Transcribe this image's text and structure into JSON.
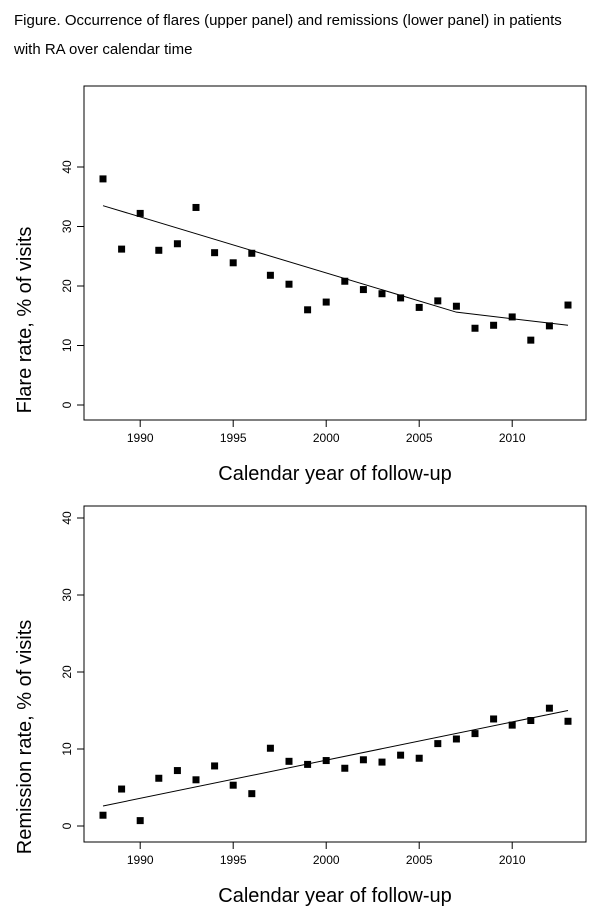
{
  "figure": {
    "caption": "Figure. Occurrence of flares (upper panel) and remissions (lower panel) in patients with RA over calendar time"
  },
  "chart_data": [
    {
      "type": "scatter",
      "title": "",
      "xlabel": "Calendar year of follow-up",
      "ylabel": "Flare rate, % of visits",
      "xlim": [
        1988,
        2013
      ],
      "ylim": [
        0,
        40
      ],
      "xticks": [
        "1990",
        "1995",
        "2000",
        "2005",
        "2010"
      ],
      "yticks": [
        "0",
        "10",
        "20",
        "30",
        "40"
      ],
      "grid": false,
      "marker_color": "#000000",
      "points": {
        "x": [
          1988,
          1989,
          1990,
          1991,
          1992,
          1993,
          1994,
          1995,
          1996,
          1997,
          1998,
          1999,
          2000,
          2001,
          2002,
          2003,
          2004,
          2005,
          2006,
          2007,
          2008,
          2009,
          2010,
          2011,
          2012,
          2013
        ],
        "y": [
          38.0,
          26.2,
          32.2,
          26.0,
          27.1,
          33.2,
          25.6,
          23.9,
          25.5,
          21.8,
          20.3,
          16.0,
          17.3,
          20.8,
          19.4,
          18.7,
          18.0,
          16.4,
          17.5,
          16.6,
          12.9,
          13.4,
          14.8,
          10.9,
          13.3,
          16.8
        ]
      },
      "fit_line": {
        "x": [
          1988,
          2007,
          2013
        ],
        "y": [
          33.5,
          15.6,
          13.4
        ]
      }
    },
    {
      "type": "scatter",
      "title": "",
      "xlabel": "Calendar year of follow-up",
      "ylabel": "Remission rate, % of visits",
      "xlim": [
        1988,
        2013
      ],
      "ylim": [
        0,
        40
      ],
      "xticks": [
        "1990",
        "1995",
        "2000",
        "2005",
        "2010"
      ],
      "yticks": [
        "0",
        "10",
        "20",
        "30",
        "40"
      ],
      "grid": false,
      "marker_color": "#000000",
      "points": {
        "x": [
          1988,
          1989,
          1990,
          1991,
          1992,
          1993,
          1994,
          1995,
          1996,
          1997,
          1998,
          1999,
          2000,
          2001,
          2002,
          2003,
          2004,
          2005,
          2006,
          2007,
          2008,
          2009,
          2010,
          2011,
          2012,
          2013
        ],
        "y": [
          1.4,
          4.8,
          0.7,
          6.2,
          7.2,
          6.0,
          7.8,
          5.3,
          4.2,
          10.1,
          8.4,
          8.0,
          8.5,
          7.5,
          8.6,
          8.3,
          9.2,
          8.8,
          10.7,
          11.3,
          12.0,
          13.9,
          13.1,
          13.7,
          15.3,
          13.6
        ]
      },
      "fit_line": {
        "x": [
          1988,
          2013
        ],
        "y": [
          2.6,
          15.0
        ]
      }
    }
  ]
}
